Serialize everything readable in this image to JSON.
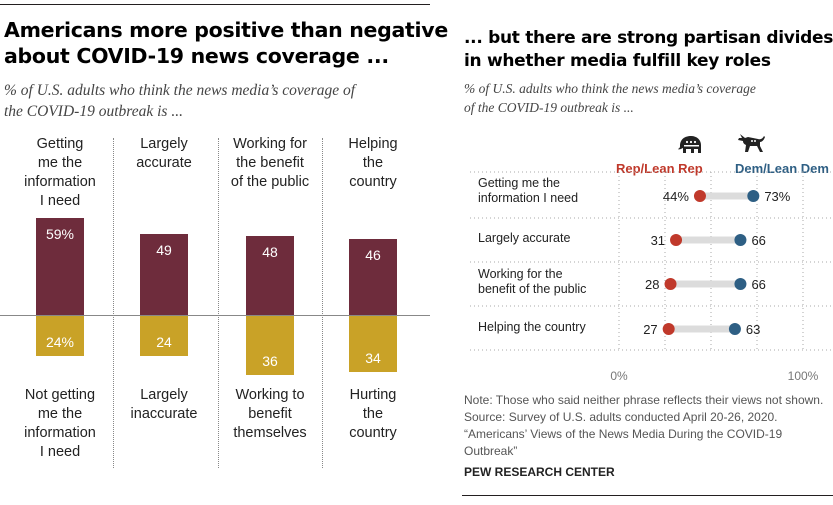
{
  "left": {
    "title_line1": "Americans more positive than negative",
    "title_line2": "about COVID-19 news coverage ...",
    "subtitle_line1": "% of U.S. adults who think the news media’s coverage of",
    "subtitle_line2": "the COVID-19 outbreak is ..."
  },
  "right": {
    "title_line1": "... but there are strong partisan divides",
    "title_line2": "in whether media fulfill key roles",
    "subtitle_line1": "% of U.S. adults who think the news media’s coverage",
    "subtitle_line2": "of the COVID-19 outbreak is ...",
    "rep_label": "Rep/Lean Rep",
    "dem_label": "Dem/Lean Dem",
    "axis_min_label": "0%",
    "axis_max_label": "100%",
    "rep_icon": "elephant-icon",
    "dem_icon": "donkey-icon"
  },
  "notes": {
    "line1": "Note: Those who said neither phrase reflects their views not shown.",
    "line2": "Source: Survey of U.S. adults conducted April 20-26, 2020.",
    "line3": "“Americans’ Views of the News Media During the COVID-19",
    "line4": "Outbreak”",
    "org": "PEW RESEARCH CENTER"
  },
  "colors": {
    "positive_bar": "#6e2c3c",
    "negative_bar": "#c9a227",
    "rep": "#c0392b",
    "dem": "#2e5f84",
    "track": "#dcdcdc"
  },
  "chart_data": [
    {
      "type": "bar",
      "categories": [
        {
          "top": [
            "Getting",
            "me the",
            "information",
            "I need"
          ],
          "bottom": [
            "Not getting",
            "me the",
            "information",
            "I need"
          ]
        },
        {
          "top": [
            "Largely",
            "accurate"
          ],
          "bottom": [
            "Largely",
            "inaccurate"
          ]
        },
        {
          "top": [
            "Working for",
            "the benefit",
            "of the public"
          ],
          "bottom": [
            "Working to",
            "benefit",
            "themselves"
          ]
        },
        {
          "top": [
            "Helping",
            "the",
            "country"
          ],
          "bottom": [
            "Hurting",
            "the",
            "country"
          ]
        }
      ],
      "series": [
        {
          "values": [
            59,
            49,
            48,
            46
          ],
          "labels": [
            "59%",
            "49",
            "48",
            "46"
          ]
        },
        {
          "values": [
            24,
            24,
            36,
            34
          ],
          "labels": [
            "24%",
            "24",
            "36",
            "34"
          ]
        }
      ]
    },
    {
      "type": "scatter",
      "categories": [
        [
          "Getting me the",
          "information I need"
        ],
        [
          "Largely accurate"
        ],
        [
          "Working for the",
          "benefit of the public"
        ],
        [
          "Helping the country"
        ]
      ],
      "series": [
        {
          "name": "Rep/Lean Rep",
          "values": [
            44,
            31,
            28,
            27
          ],
          "labels": [
            "44%",
            "31",
            "28",
            "27"
          ]
        },
        {
          "name": "Dem/Lean Dem",
          "values": [
            73,
            66,
            66,
            63
          ],
          "labels": [
            "73%",
            "66",
            "66",
            "63"
          ]
        }
      ],
      "xlim": [
        0,
        100
      ],
      "axis_labels": [
        "0%",
        "100%"
      ]
    }
  ]
}
